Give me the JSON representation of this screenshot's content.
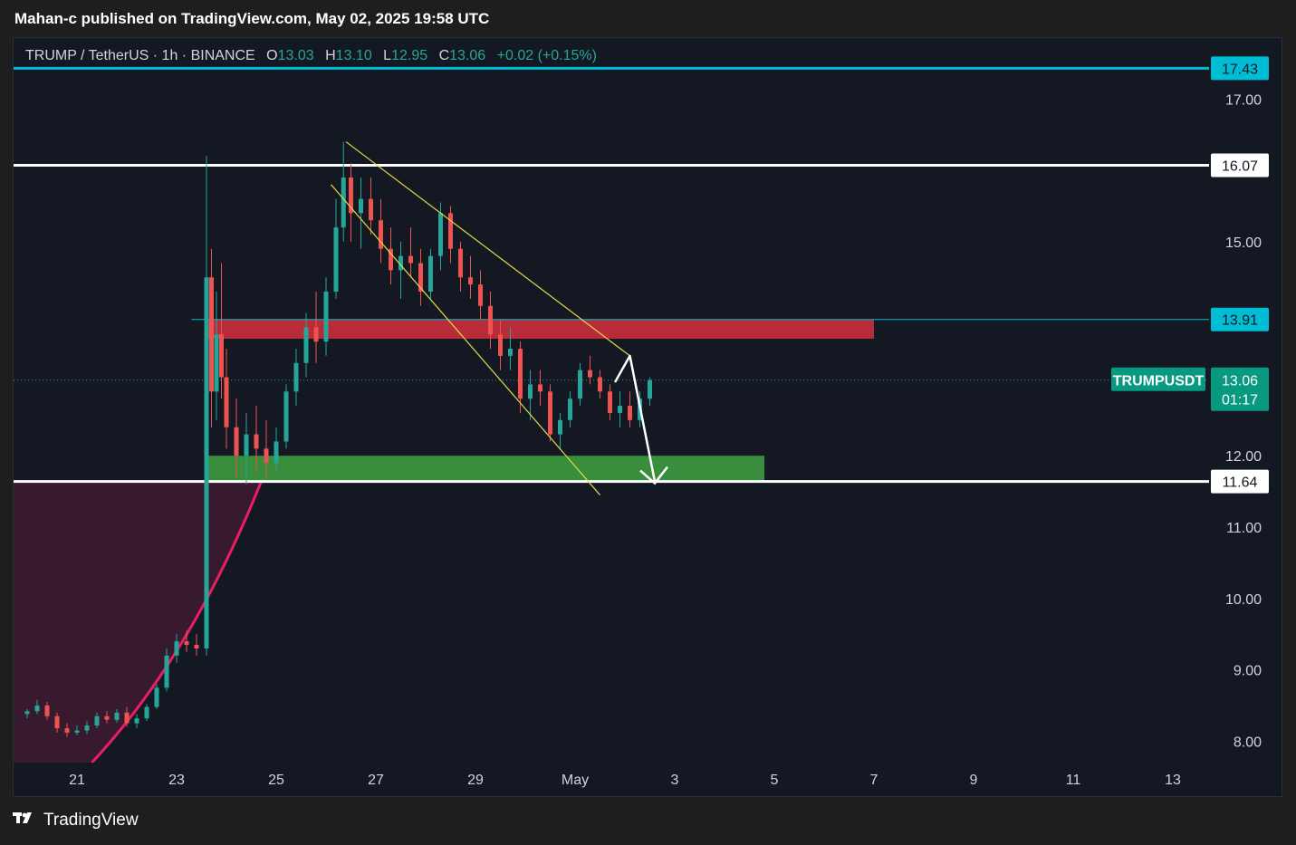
{
  "header": {
    "published_by": "Mahan-c published on TradingView.com, May 02, 2025 19:58 UTC"
  },
  "legend": {
    "symbol": "TRUMP / TetherUS · 1h · BINANCE",
    "open_label": "O",
    "open": "13.03",
    "high_label": "H",
    "high": "13.10",
    "low_label": "L",
    "low": "12.95",
    "close_label": "C",
    "close": "13.06",
    "change": "+0.02 (+0.15%)"
  },
  "footer": {
    "brand": "TradingView",
    "logo_icon": "tradingview-logo-icon"
  },
  "colors": {
    "background": "#141823",
    "up": "#26a69a",
    "down": "#ef5350",
    "cyan_level": "#00bcd4",
    "white_level": "#ffffff",
    "resistance_zone": "#b82c3a",
    "support_zone": "#388e3c",
    "channel": "#e6d84a",
    "curve": "#e91e63",
    "curve_fill": "#3d1b30",
    "price_tag": "#089981"
  },
  "chart_data": {
    "type": "candlestick",
    "title": "TRUMP / TetherUS · 1h · BINANCE",
    "symbol_tag": "TRUMPUSDT",
    "current_price": "13.06",
    "countdown": "01:17",
    "y_axis": {
      "ticks": [
        "17.00",
        "15.00",
        "12.00",
        "11.00",
        "10.00",
        "9.00",
        "8.00"
      ],
      "tick_values": [
        17.0,
        15.0,
        12.0,
        11.0,
        10.0,
        9.0,
        8.0
      ],
      "range": [
        7.7,
        17.6
      ]
    },
    "x_axis": {
      "ticks": [
        "21",
        "23",
        "25",
        "27",
        "29",
        "May",
        "3",
        "5",
        "7",
        "9",
        "11",
        "13"
      ],
      "tick_days": [
        21,
        23,
        25,
        27,
        29,
        31,
        33,
        35,
        37,
        39,
        41,
        43
      ],
      "note": "days of April 2025; May 1 = day 31"
    },
    "horizontal_levels": [
      {
        "price": 17.43,
        "label": "17.43",
        "color": "cyan"
      },
      {
        "price": 16.07,
        "label": "16.07",
        "color": "white"
      },
      {
        "price": 13.91,
        "label": "13.91",
        "color": "cyan"
      },
      {
        "price": 11.64,
        "label": "11.64",
        "color": "white"
      }
    ],
    "zones": [
      {
        "name": "resistance",
        "from_day": 23.6,
        "to_day": 37.0,
        "low": 13.64,
        "high": 13.91
      },
      {
        "name": "support",
        "from_day": 23.6,
        "to_day": 34.8,
        "low": 11.64,
        "high": 12.0
      }
    ],
    "channel": {
      "upper": [
        [
          26.4,
          16.4
        ],
        [
          32.1,
          13.4
        ]
      ],
      "lower": [
        [
          26.1,
          15.8
        ],
        [
          31.5,
          11.45
        ]
      ]
    },
    "projection_path": [
      [
        31.8,
        13.03
      ],
      [
        32.1,
        13.4
      ],
      [
        32.6,
        11.64
      ]
    ],
    "candles": [
      [
        20.0,
        8.38,
        8.45,
        8.32,
        8.42
      ],
      [
        20.2,
        8.42,
        8.58,
        8.38,
        8.5
      ],
      [
        20.4,
        8.5,
        8.55,
        8.3,
        8.35
      ],
      [
        20.6,
        8.35,
        8.4,
        8.12,
        8.18
      ],
      [
        20.8,
        8.18,
        8.25,
        8.06,
        8.12
      ],
      [
        21.0,
        8.12,
        8.22,
        8.08,
        8.15
      ],
      [
        21.2,
        8.15,
        8.28,
        8.1,
        8.22
      ],
      [
        21.4,
        8.22,
        8.4,
        8.18,
        8.35
      ],
      [
        21.6,
        8.35,
        8.42,
        8.25,
        8.3
      ],
      [
        21.8,
        8.3,
        8.45,
        8.26,
        8.4
      ],
      [
        22.0,
        8.4,
        8.48,
        8.2,
        8.25
      ],
      [
        22.2,
        8.25,
        8.38,
        8.18,
        8.32
      ],
      [
        22.4,
        8.32,
        8.52,
        8.28,
        8.48
      ],
      [
        22.6,
        8.48,
        8.8,
        8.45,
        8.75
      ],
      [
        22.8,
        8.75,
        9.3,
        8.7,
        9.2
      ],
      [
        23.0,
        9.2,
        9.5,
        9.1,
        9.4
      ],
      [
        23.2,
        9.4,
        9.55,
        9.25,
        9.35
      ],
      [
        23.4,
        9.35,
        9.5,
        9.2,
        9.3
      ],
      [
        23.6,
        9.3,
        16.2,
        9.2,
        14.5
      ],
      [
        23.7,
        14.5,
        14.9,
        12.4,
        12.9
      ],
      [
        23.8,
        12.9,
        14.3,
        12.5,
        13.7
      ],
      [
        23.9,
        13.7,
        14.7,
        12.8,
        13.1
      ],
      [
        24.0,
        13.1,
        13.5,
        12.1,
        12.4
      ],
      [
        24.2,
        12.4,
        12.8,
        11.7,
        12.0
      ],
      [
        24.4,
        12.0,
        12.6,
        11.6,
        12.3
      ],
      [
        24.6,
        12.3,
        12.7,
        11.8,
        12.1
      ],
      [
        24.8,
        12.1,
        12.5,
        11.7,
        11.9
      ],
      [
        25.0,
        11.9,
        12.4,
        11.8,
        12.2
      ],
      [
        25.2,
        12.2,
        13.0,
        12.1,
        12.9
      ],
      [
        25.4,
        12.9,
        13.5,
        12.7,
        13.3
      ],
      [
        25.6,
        13.3,
        14.0,
        13.1,
        13.8
      ],
      [
        25.8,
        13.8,
        14.3,
        13.3,
        13.6
      ],
      [
        26.0,
        13.6,
        14.5,
        13.4,
        14.3
      ],
      [
        26.2,
        14.3,
        15.6,
        14.2,
        15.2
      ],
      [
        26.35,
        15.2,
        16.4,
        15.0,
        15.9
      ],
      [
        26.5,
        15.9,
        16.1,
        15.0,
        15.4
      ],
      [
        26.7,
        15.4,
        15.9,
        14.9,
        15.6
      ],
      [
        26.9,
        15.6,
        15.9,
        15.1,
        15.3
      ],
      [
        27.1,
        15.3,
        15.6,
        14.7,
        14.9
      ],
      [
        27.3,
        14.9,
        15.2,
        14.4,
        14.6
      ],
      [
        27.5,
        14.6,
        15.0,
        14.2,
        14.8
      ],
      [
        27.7,
        14.8,
        15.2,
        14.5,
        14.7
      ],
      [
        27.9,
        14.7,
        14.9,
        14.1,
        14.3
      ],
      [
        28.1,
        14.3,
        14.9,
        14.2,
        14.8
      ],
      [
        28.3,
        14.8,
        15.55,
        14.6,
        15.4
      ],
      [
        28.5,
        15.4,
        15.5,
        14.7,
        14.9
      ],
      [
        28.7,
        14.9,
        15.0,
        14.3,
        14.5
      ],
      [
        28.9,
        14.5,
        14.8,
        14.2,
        14.4
      ],
      [
        29.1,
        14.4,
        14.6,
        13.9,
        14.1
      ],
      [
        29.3,
        14.1,
        14.3,
        13.5,
        13.7
      ],
      [
        29.5,
        13.7,
        13.9,
        13.2,
        13.4
      ],
      [
        29.7,
        13.4,
        13.8,
        13.2,
        13.5
      ],
      [
        29.9,
        13.5,
        13.6,
        12.6,
        12.8
      ],
      [
        30.1,
        12.8,
        13.2,
        12.5,
        13.0
      ],
      [
        30.3,
        13.0,
        13.2,
        12.7,
        12.9
      ],
      [
        30.5,
        12.9,
        13.0,
        12.2,
        12.3
      ],
      [
        30.7,
        12.3,
        12.6,
        12.1,
        12.5
      ],
      [
        30.9,
        12.5,
        12.9,
        12.4,
        12.8
      ],
      [
        31.1,
        12.8,
        13.3,
        12.7,
        13.2
      ],
      [
        31.3,
        13.2,
        13.4,
        13.0,
        13.1
      ],
      [
        31.5,
        13.1,
        13.2,
        12.8,
        12.9
      ],
      [
        31.7,
        12.9,
        13.0,
        12.5,
        12.6
      ],
      [
        31.9,
        12.6,
        12.9,
        12.4,
        12.7
      ],
      [
        32.1,
        12.7,
        12.9,
        12.4,
        12.5
      ],
      [
        32.3,
        12.5,
        12.9,
        12.4,
        12.8
      ],
      [
        32.5,
        12.8,
        13.1,
        12.7,
        13.06
      ]
    ]
  }
}
